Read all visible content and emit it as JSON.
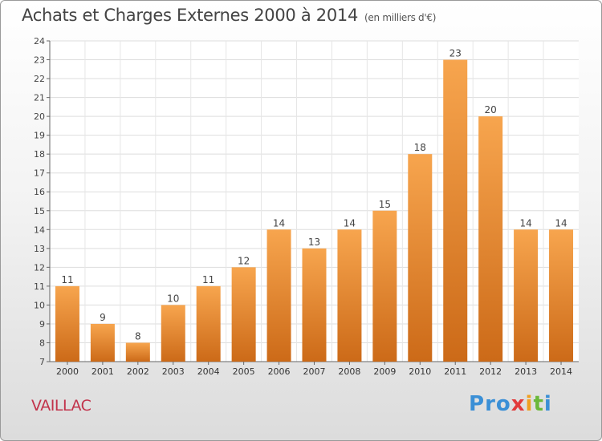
{
  "header": {
    "title": "Achats et Charges Externes 2000 à 2014",
    "unit": "(en milliers d'€)"
  },
  "footer": {
    "commune": "VAILLAC",
    "brand_letters": [
      "P",
      "r",
      "o",
      "x",
      "i",
      "t",
      "i"
    ],
    "brand_colors": [
      "#3a8fd6",
      "#3a8fd6",
      "#3a8fd6",
      "#e23b3b",
      "#f0a020",
      "#6ab83a",
      "#3a8fd6"
    ]
  },
  "chart_data": {
    "type": "bar",
    "title": "Achats et Charges Externes 2000 à 2014",
    "unit_label": "(en milliers d'€)",
    "categories": [
      "2000",
      "2001",
      "2002",
      "2003",
      "2004",
      "2005",
      "2006",
      "2007",
      "2008",
      "2009",
      "2010",
      "2011",
      "2012",
      "2013",
      "2014"
    ],
    "values": [
      11,
      9,
      8,
      10,
      11,
      12,
      14,
      13,
      14,
      15,
      18,
      23,
      20,
      14,
      14
    ],
    "ylim": [
      7,
      24
    ],
    "yticks": [
      7,
      8,
      9,
      10,
      11,
      12,
      13,
      14,
      15,
      16,
      17,
      18,
      19,
      20,
      21,
      22,
      23,
      24
    ],
    "grid": true,
    "bar_color": "#f0993e",
    "bar_color_dark": "#cc6a18"
  }
}
